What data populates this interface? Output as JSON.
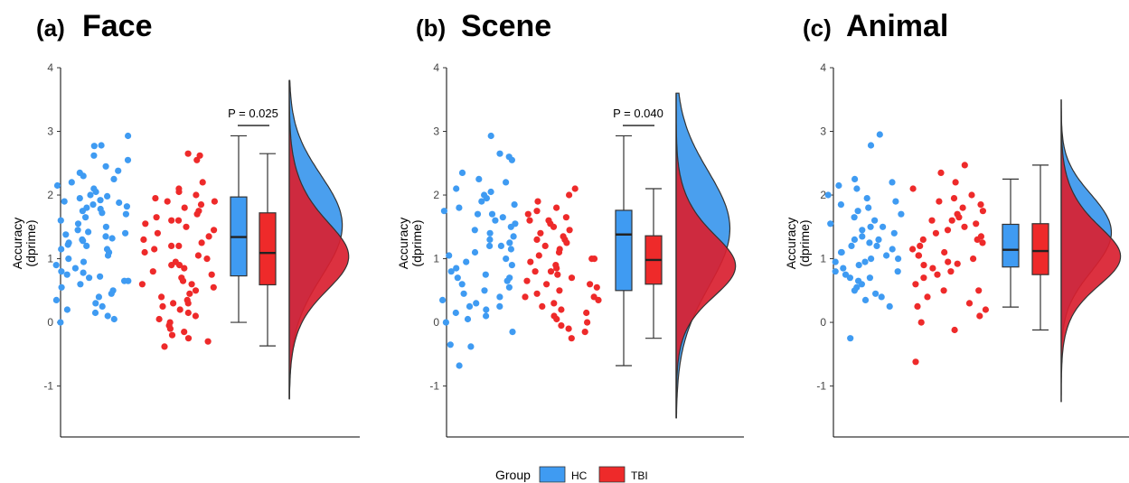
{
  "chart_data": [
    {
      "type": "raincloud",
      "letter": "(a)",
      "title": "Face",
      "ylabel": "Accuracy\n(dprime)",
      "ylim": [
        -1.8,
        4
      ],
      "yticks": [
        -1,
        0,
        1,
        2,
        3,
        4
      ],
      "annotation": "P = 0.025",
      "groups": [
        {
          "name": "HC",
          "points": [
            2.78,
            2.93,
            2.77,
            2.45,
            2.38,
            2.35,
            2.3,
            2.25,
            2.2,
            2.15,
            2.1,
            2.05,
            2.0,
            1.98,
            1.95,
            1.92,
            1.88,
            1.85,
            1.82,
            1.8,
            1.78,
            1.75,
            1.72,
            1.7,
            1.65,
            1.6,
            1.55,
            1.5,
            1.45,
            1.42,
            1.4,
            1.38,
            1.35,
            1.32,
            1.3,
            1.28,
            1.25,
            1.22,
            1.2,
            1.15,
            1.1,
            1.05,
            1.0,
            0.95,
            0.9,
            0.85,
            0.8,
            0.78,
            0.75,
            0.72,
            0.7,
            0.65,
            0.6,
            0.55,
            0.5,
            0.45,
            0.4,
            0.35,
            0.3,
            0.25,
            0.2,
            0.15,
            0.1,
            0.05,
            0.0,
            2.62,
            2.55,
            1.9,
            1.15,
            0.65
          ],
          "box": {
            "min": 0.0,
            "q1": 0.73,
            "median": 1.34,
            "q3": 1.97,
            "max": 2.93
          }
        },
        {
          "name": "TBI",
          "points": [
            2.65,
            2.62,
            2.55,
            2.2,
            2.1,
            2.05,
            2.0,
            1.95,
            1.9,
            1.85,
            1.8,
            1.75,
            1.7,
            1.65,
            1.6,
            1.55,
            1.5,
            1.45,
            1.4,
            1.35,
            1.3,
            1.25,
            1.2,
            1.15,
            1.1,
            1.05,
            1.0,
            0.95,
            0.9,
            0.85,
            0.8,
            0.75,
            0.7,
            0.65,
            0.6,
            0.55,
            0.5,
            0.45,
            0.4,
            0.35,
            0.3,
            0.25,
            0.2,
            0.15,
            0.1,
            0.05,
            0.0,
            -0.05,
            -0.1,
            -0.15,
            -0.2,
            -0.25,
            -0.3,
            -0.38,
            1.9,
            1.6,
            1.2,
            0.9,
            0.6,
            0.3
          ],
          "box": {
            "min": -0.37,
            "q1": 0.59,
            "median": 1.09,
            "q3": 1.72,
            "max": 2.65
          }
        }
      ],
      "density_range": [
        -1.2,
        3.8
      ],
      "density": {
        "HC": {
          "mean": 1.3,
          "sd": 0.78
        },
        "TBI": {
          "mean": 1.1,
          "sd": 0.72
        }
      }
    },
    {
      "type": "raincloud",
      "letter": "(b)",
      "title": "Scene",
      "ylabel": "Accuracy\n(dprime)",
      "ylim": [
        -1.8,
        4
      ],
      "yticks": [
        -1,
        0,
        1,
        2,
        3,
        4
      ],
      "annotation": "P = 0.040",
      "groups": [
        {
          "name": "HC",
          "points": [
            2.93,
            2.65,
            2.55,
            2.35,
            2.25,
            2.2,
            2.1,
            2.05,
            2.0,
            1.95,
            1.9,
            1.85,
            1.8,
            1.75,
            1.7,
            1.65,
            1.6,
            1.55,
            1.5,
            1.45,
            1.4,
            1.35,
            1.3,
            1.25,
            1.2,
            1.15,
            1.1,
            1.05,
            1.0,
            0.95,
            0.9,
            0.85,
            0.8,
            0.75,
            0.7,
            0.65,
            0.6,
            0.55,
            0.5,
            0.45,
            0.4,
            0.35,
            0.3,
            0.25,
            0.2,
            0.15,
            0.1,
            0.05,
            0.0,
            -0.15,
            -0.35,
            -0.38,
            -0.68,
            2.6,
            1.7,
            1.2,
            0.7,
            0.25
          ],
          "box": {
            "min": -0.68,
            "q1": 0.5,
            "median": 1.38,
            "q3": 1.76,
            "max": 2.93
          }
        },
        {
          "name": "TBI",
          "points": [
            2.1,
            2.0,
            1.9,
            1.8,
            1.75,
            1.7,
            1.65,
            1.6,
            1.55,
            1.5,
            1.45,
            1.4,
            1.35,
            1.3,
            1.25,
            1.2,
            1.15,
            1.1,
            1.05,
            1.0,
            0.95,
            0.9,
            0.85,
            0.8,
            0.75,
            0.7,
            0.65,
            0.6,
            0.55,
            0.5,
            0.45,
            0.4,
            0.35,
            0.3,
            0.25,
            0.2,
            0.15,
            0.1,
            0.05,
            0.0,
            -0.05,
            -0.1,
            -0.15,
            -0.25,
            1.6,
            1.3,
            1.0,
            0.8,
            0.6,
            0.4
          ],
          "box": {
            "min": -0.25,
            "q1": 0.6,
            "median": 0.98,
            "q3": 1.36,
            "max": 2.1
          }
        }
      ],
      "density_range": [
        -1.5,
        3.6
      ],
      "density": {
        "HC": {
          "mean": 1.25,
          "sd": 0.9
        },
        "TBI": {
          "mean": 0.95,
          "sd": 0.65
        }
      }
    },
    {
      "type": "raincloud",
      "letter": "(c)",
      "title": "Animal",
      "ylabel": "Accuracy\n(dprime)",
      "ylim": [
        -1.8,
        4
      ],
      "yticks": [
        -1,
        0,
        1,
        2,
        3,
        4
      ],
      "annotation": "",
      "groups": [
        {
          "name": "HC",
          "points": [
            2.95,
            2.78,
            2.25,
            2.2,
            2.15,
            2.1,
            2.0,
            1.95,
            1.9,
            1.85,
            1.8,
            1.75,
            1.7,
            1.65,
            1.6,
            1.55,
            1.5,
            1.45,
            1.4,
            1.35,
            1.3,
            1.25,
            1.2,
            1.15,
            1.1,
            1.05,
            1.0,
            0.95,
            0.9,
            0.85,
            0.8,
            0.75,
            0.7,
            0.65,
            0.6,
            0.55,
            0.5,
            0.45,
            0.4,
            0.35,
            0.25,
            -0.25,
            1.5,
            1.3,
            1.1,
            0.95,
            0.8,
            1.2,
            1.0,
            0.7
          ],
          "box": {
            "min": 0.24,
            "q1": 0.87,
            "median": 1.14,
            "q3": 1.54,
            "max": 2.25
          }
        },
        {
          "name": "TBI",
          "points": [
            2.47,
            2.35,
            2.2,
            2.1,
            2.0,
            1.95,
            1.9,
            1.85,
            1.8,
            1.75,
            1.7,
            1.65,
            1.6,
            1.55,
            1.5,
            1.45,
            1.4,
            1.35,
            1.3,
            1.25,
            1.2,
            1.15,
            1.1,
            1.05,
            1.0,
            0.95,
            0.9,
            0.85,
            0.8,
            0.75,
            0.7,
            0.6,
            0.5,
            0.4,
            0.3,
            0.2,
            0.1,
            0.0,
            -0.12,
            -0.62,
            1.6,
            1.3,
            1.05,
            0.92,
            0.5,
            0.25
          ],
          "box": {
            "min": -0.12,
            "q1": 0.75,
            "median": 1.12,
            "q3": 1.55,
            "max": 2.47
          }
        }
      ],
      "density_range": [
        -1.25,
        3.5
      ],
      "density": {
        "HC": {
          "mean": 1.2,
          "sd": 0.55
        },
        "TBI": {
          "mean": 1.1,
          "sd": 0.62
        }
      }
    }
  ],
  "legend": {
    "title": "Group",
    "items": [
      {
        "label": "HC",
        "color": "#3f9bf2"
      },
      {
        "label": "TBI",
        "color": "#ee2a2a"
      }
    ]
  },
  "colors": {
    "HC": "#3f9bf2",
    "TBI": "#ee2a2a",
    "HC_density": "#4a9fee",
    "TBI_density": "#d91f30"
  }
}
